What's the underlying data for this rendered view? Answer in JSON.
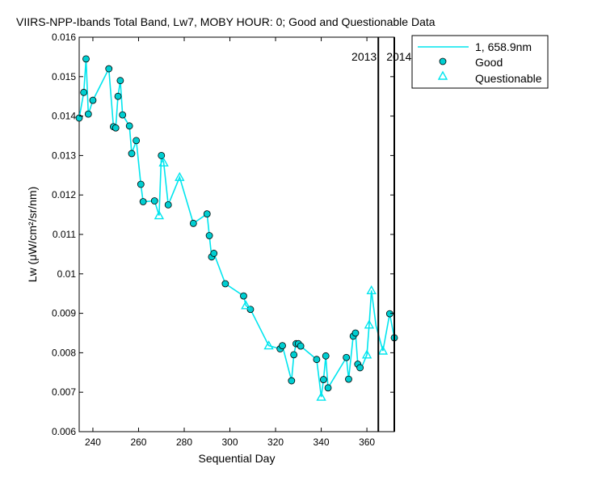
{
  "chart_data": {
    "type": "line",
    "title": "VIIRS-NPP-Ibands Total Band,  Lw7, MOBY HOUR: 0;  Good and Questionable Data",
    "xlabel": "Sequential Day",
    "ylabel": "Lw (μW/cm²/sr/nm)",
    "xlim": [
      234,
      372
    ],
    "ylim": [
      0.006,
      0.016
    ],
    "xticks": [
      240,
      260,
      280,
      300,
      320,
      340,
      360
    ],
    "yticks": [
      0.006,
      0.007,
      0.008,
      0.009,
      0.01,
      0.011,
      0.012,
      0.013,
      0.014,
      0.015,
      0.016
    ],
    "ytick_labels": [
      "0.006",
      "0.007",
      "0.008",
      "0.009",
      "0.01",
      "0.011",
      "0.012",
      "0.013",
      "0.014",
      "0.015",
      "0.016"
    ],
    "grid": false,
    "legend_position": "outside-top-right",
    "year_boundary": {
      "x": 365,
      "left_label": "2013",
      "right_label": "2014"
    },
    "right_edge_line_x": 372,
    "series": [
      {
        "name": "1, 658.9nm",
        "role": "line",
        "color": "#00E5EE",
        "x": [
          234,
          236,
          237,
          238,
          240,
          247,
          249,
          250,
          251,
          252,
          253,
          256,
          257,
          259,
          261,
          262,
          267,
          269,
          270,
          271,
          273,
          278,
          284,
          290,
          291,
          292,
          293,
          298,
          306,
          307,
          309,
          317,
          322,
          323,
          327,
          328,
          329,
          330,
          331,
          338,
          340,
          341,
          342,
          343,
          351,
          352,
          354,
          355,
          356,
          357,
          358,
          360,
          361,
          362,
          364,
          367,
          370,
          372
        ],
        "y": [
          0.01395,
          0.0146,
          0.01545,
          0.01405,
          0.0144,
          0.0152,
          0.01373,
          0.0137,
          0.0145,
          0.0149,
          0.01403,
          0.01375,
          0.01305,
          0.01338,
          0.01227,
          0.01183,
          0.01185,
          0.01148,
          0.013,
          0.01282,
          0.01175,
          0.01245,
          0.01128,
          0.01152,
          0.01097,
          0.01043,
          0.01052,
          0.00975,
          0.00944,
          0.0092,
          0.0091,
          0.00818,
          0.0081,
          0.00818,
          0.00729,
          0.00795,
          0.00823,
          0.00823,
          0.00817,
          0.00783,
          0.00688,
          0.00732,
          0.00792,
          0.00711,
          0.00788,
          0.00733,
          0.00842,
          0.0085,
          0.00771,
          0.00762,
          0.00767,
          0.00795,
          0.00871,
          0.00958,
          0.00868,
          0.00805,
          0.00899,
          0.00838
        ]
      },
      {
        "name": "Good",
        "role": "markers",
        "marker": "circle",
        "color": "#00CED1",
        "x": [
          234,
          236,
          237,
          238,
          240,
          247,
          249,
          250,
          251,
          252,
          253,
          256,
          257,
          259,
          261,
          262,
          267,
          270,
          273,
          284,
          290,
          291,
          292,
          293,
          298,
          306,
          309,
          322,
          323,
          327,
          328,
          329,
          330,
          331,
          338,
          341,
          342,
          343,
          351,
          352,
          354,
          355,
          356,
          357,
          370,
          372
        ],
        "y": [
          0.01395,
          0.0146,
          0.01545,
          0.01405,
          0.0144,
          0.0152,
          0.01373,
          0.0137,
          0.0145,
          0.0149,
          0.01403,
          0.01375,
          0.01305,
          0.01338,
          0.01227,
          0.01183,
          0.01185,
          0.013,
          0.01175,
          0.01128,
          0.01152,
          0.01097,
          0.01043,
          0.01052,
          0.00975,
          0.00944,
          0.0091,
          0.0081,
          0.00818,
          0.00729,
          0.00795,
          0.00823,
          0.00823,
          0.00817,
          0.00783,
          0.00732,
          0.00792,
          0.00711,
          0.00788,
          0.00733,
          0.00842,
          0.0085,
          0.00771,
          0.00762,
          0.00899,
          0.00838
        ]
      },
      {
        "name": "Questionable",
        "role": "markers",
        "marker": "triangle",
        "color": "#00E5EE",
        "x": [
          269,
          271,
          278,
          307,
          317,
          340,
          360,
          361,
          362,
          367
        ],
        "y": [
          0.01148,
          0.01282,
          0.01245,
          0.0092,
          0.00818,
          0.00688,
          0.00795,
          0.00871,
          0.00958,
          0.00805
        ]
      }
    ]
  }
}
